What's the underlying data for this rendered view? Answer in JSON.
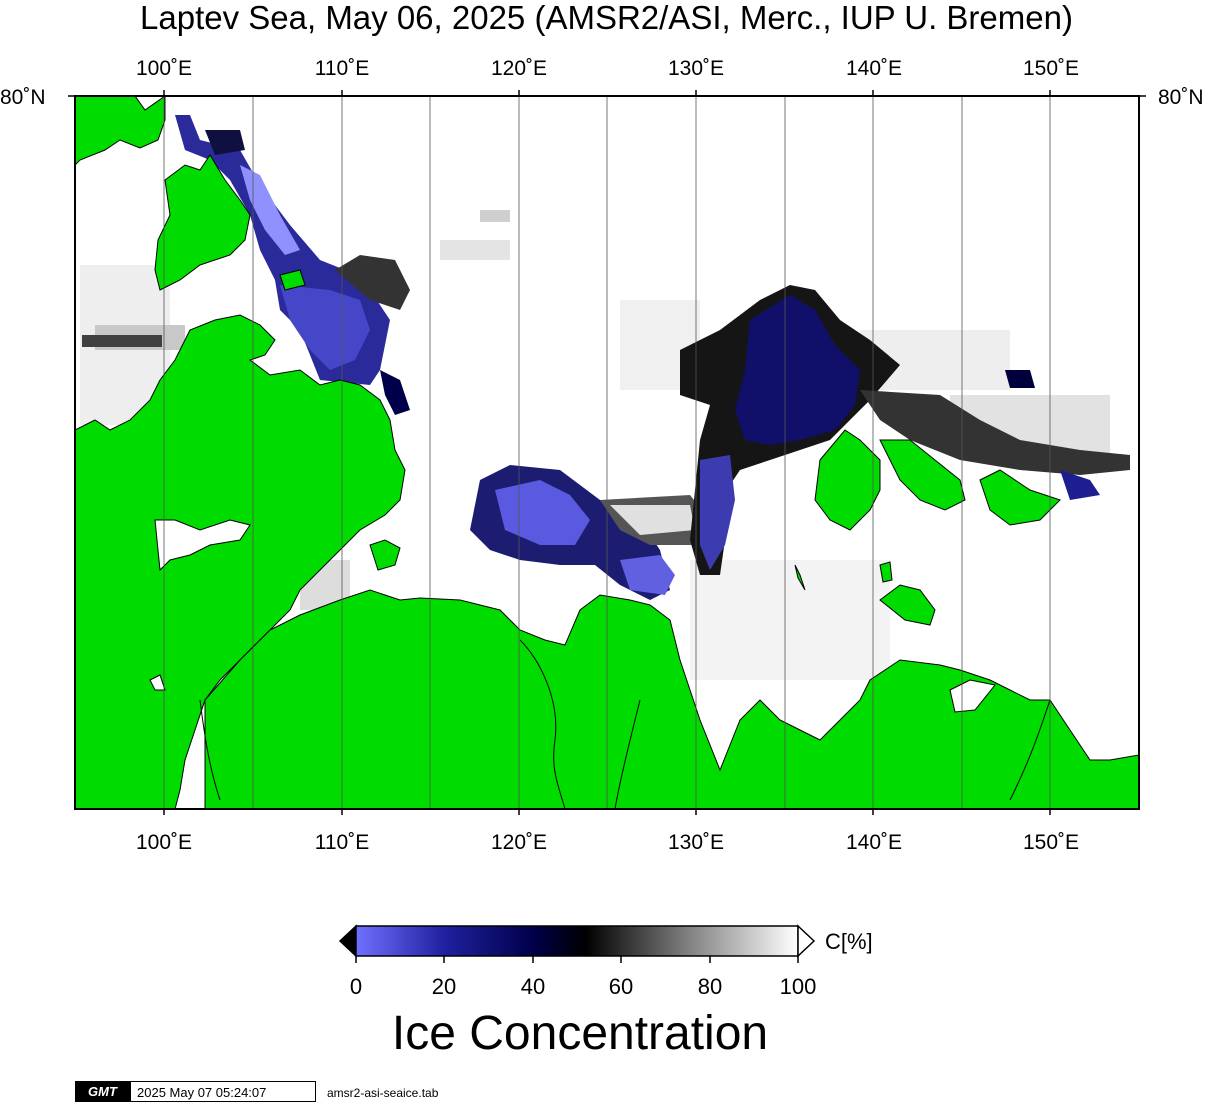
{
  "title": "Laptev Sea, May 06, 2025 (AMSR2/ASI, Merc., IUP U. Bremen)",
  "map": {
    "longitude_ticks": [
      "100˚E",
      "110˚E",
      "120˚E",
      "130˚E",
      "140˚E",
      "150˚E"
    ],
    "latitude_label_left": "80˚N",
    "latitude_label_right": "80˚N",
    "colors": {
      "land": "#00dc00",
      "open_water": "#ffffff",
      "coastline": "#000000",
      "frame": "#000000"
    }
  },
  "colorbar": {
    "unit_label": "C[%]",
    "tick_labels": [
      "0",
      "20",
      "40",
      "60",
      "80",
      "100"
    ],
    "color_stops": [
      "#7070ff",
      "#2020a0",
      "#00004a",
      "#000000",
      "#808080",
      "#ffffff"
    ]
  },
  "legend_title": "Ice Concentration",
  "footer": {
    "logo_text": "GMT",
    "timestamp": "2025 May 07 05:24:07",
    "source_file": "amsr2-asi-seaice.tab"
  }
}
